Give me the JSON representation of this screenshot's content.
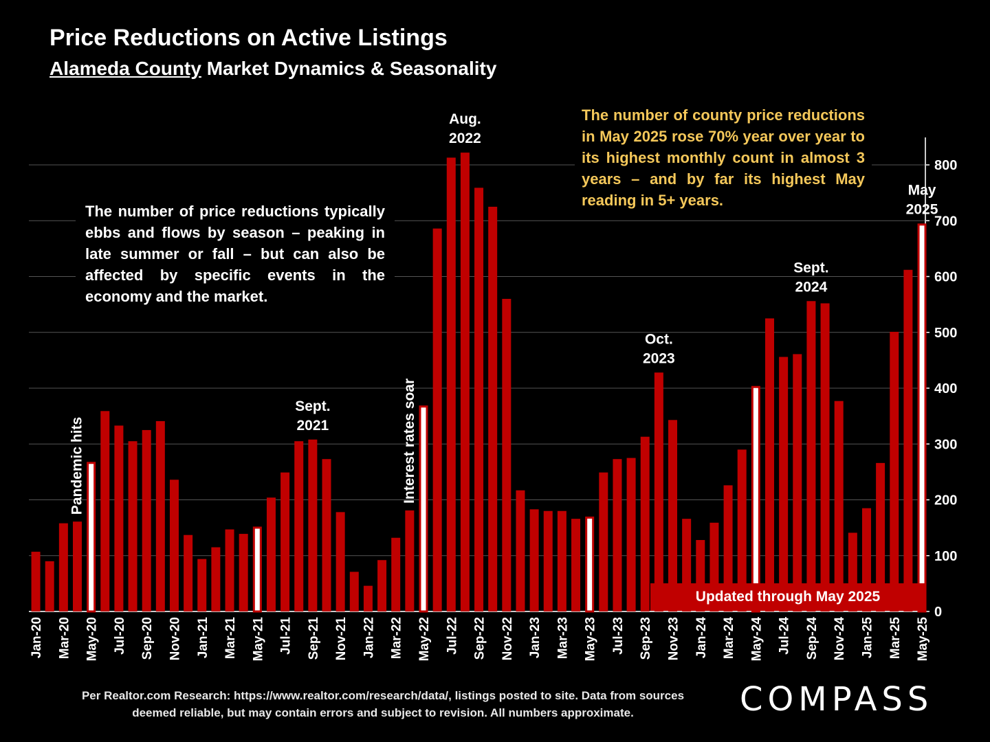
{
  "header": {
    "title": "Price Reductions on Active Listings",
    "subtitle_underlined": "Alameda County",
    "subtitle_rest": " Market Dynamics & Seasonality"
  },
  "notes": {
    "left": "The number of price reductions typically ebbs and flows by season – peaking in late summer or fall – but can also be affected by specific events in the economy and the market.",
    "right": "The number of county price reductions in May 2025 rose 70% year over year to its highest monthly count in almost 3 years – and by far its highest May reading in 5+ years."
  },
  "updated_label": "Updated through May 2025",
  "source": "Per Realtor.com Research:  https://www.realtor.com/research/data/, listings posted to site. Data from sources deemed reliable, but may contain errors and subject to revision. All numbers approximate.",
  "logo": "COMPASS",
  "colors": {
    "bar": "#c00000",
    "highlight": "#ffffff",
    "note_right": "#f5c85a"
  },
  "chart_data": {
    "type": "bar",
    "ylim": [
      0,
      850
    ],
    "yticks": [
      0,
      100,
      200,
      300,
      400,
      500,
      600,
      700,
      800
    ],
    "grid": true,
    "y_axis_position": "right",
    "categories": [
      "Jan-20",
      "Feb-20",
      "Mar-20",
      "Apr-20",
      "May-20",
      "Jun-20",
      "Jul-20",
      "Aug-20",
      "Sep-20",
      "Oct-20",
      "Nov-20",
      "Dec-20",
      "Jan-21",
      "Feb-21",
      "Mar-21",
      "Apr-21",
      "May-21",
      "Jun-21",
      "Jul-21",
      "Aug-21",
      "Sep-21",
      "Oct-21",
      "Nov-21",
      "Dec-21",
      "Jan-22",
      "Feb-22",
      "Mar-22",
      "Apr-22",
      "May-22",
      "Jun-22",
      "Jul-22",
      "Aug-22",
      "Sep-22",
      "Oct-22",
      "Nov-22",
      "Dec-22",
      "Jan-23",
      "Feb-23",
      "Mar-23",
      "Apr-23",
      "May-23",
      "Jun-23",
      "Jul-23",
      "Aug-23",
      "Sep-23",
      "Oct-23",
      "Nov-23",
      "Dec-23",
      "Jan-24",
      "Feb-24",
      "Mar-24",
      "Apr-24",
      "May-24",
      "Jun-24",
      "Jul-24",
      "Aug-24",
      "Sep-24",
      "Oct-24",
      "Nov-24",
      "Dec-24",
      "Jan-25",
      "Feb-25",
      "Mar-25",
      "Apr-25",
      "May-25"
    ],
    "tick_labels_shown": [
      "Jan-20",
      "Mar-20",
      "May-20",
      "Jul-20",
      "Sep-20",
      "Nov-20",
      "Jan-21",
      "Mar-21",
      "May-21",
      "Jul-21",
      "Sep-21",
      "Nov-21",
      "Jan-22",
      "Mar-22",
      "May-22",
      "Jul-22",
      "Sep-22",
      "Nov-22",
      "Jan-23",
      "Mar-23",
      "May-23",
      "Jul-23",
      "Sep-23",
      "Nov-23",
      "Jan-24",
      "Mar-24",
      "May-24",
      "Jul-24",
      "Sep-24",
      "Nov-24",
      "Jan-25",
      "Mar-25",
      "May-25"
    ],
    "values": [
      107,
      90,
      158,
      161,
      268,
      359,
      333,
      305,
      325,
      341,
      236,
      137,
      94,
      115,
      147,
      139,
      152,
      204,
      249,
      305,
      308,
      273,
      178,
      71,
      46,
      92,
      132,
      181,
      369,
      686,
      813,
      822,
      759,
      725,
      560,
      217,
      183,
      180,
      180,
      166,
      170,
      249,
      273,
      275,
      313,
      428,
      343,
      166,
      128,
      159,
      226,
      290,
      404,
      525,
      456,
      461,
      556,
      552,
      377,
      141,
      185,
      266,
      501,
      612,
      695
    ],
    "highlighted": [
      "May-20",
      "May-21",
      "May-22",
      "May-23",
      "May-24",
      "May-25"
    ],
    "annotations": [
      {
        "category": "Apr-20",
        "text": "Pandemic hits",
        "style": "vertical"
      },
      {
        "category": "Apr-22",
        "text": "Interest rates soar",
        "style": "vertical"
      },
      {
        "category": "Sep-21",
        "lines": [
          "Sept.",
          "2021"
        ]
      },
      {
        "category": "Aug-22",
        "lines": [
          "Aug.",
          "2022"
        ]
      },
      {
        "category": "Oct-23",
        "lines": [
          "Oct.",
          "2023"
        ]
      },
      {
        "category": "Sep-24",
        "lines": [
          "Sept.",
          "2024"
        ]
      },
      {
        "category": "May-25",
        "lines": [
          "May",
          "2025"
        ]
      }
    ]
  }
}
